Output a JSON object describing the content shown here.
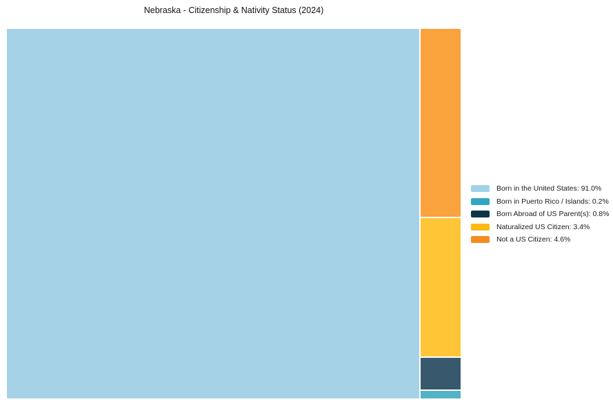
{
  "title": "Nebraska - Citizenship & Nativity Status (2024)",
  "chart_data": {
    "type": "treemap",
    "title": "Nebraska - Citizenship & Nativity Status (2024)",
    "unit": "%",
    "total": 100,
    "legend_position": "right-middle",
    "layout": "large-block-left-small-column-right-descending",
    "segments": [
      {
        "label": "Born in the United States",
        "value": 91.0,
        "display": "Born in the United States: 91.0%",
        "color": "#a6d2e8",
        "legend_color": "#a3d3e9"
      },
      {
        "label": "Born in Puerto Rico / Islands",
        "value": 0.2,
        "display": "Born in Puerto Rico / Islands: 0.2%",
        "color": "#52b2c6",
        "legend_color": "#33a7c2"
      },
      {
        "label": "Born Abroad of US Parent(s)",
        "value": 0.8,
        "display": "Born Abroad of US Parent(s): 0.8%",
        "color": "#38586d",
        "legend_color": "#0d3349"
      },
      {
        "label": "Naturalized US Citizen",
        "value": 3.4,
        "display": "Naturalized US Citizen: 3.4%",
        "color": "#fec537",
        "legend_color": "#fdb813"
      },
      {
        "label": "Not a US Citizen",
        "value": 4.6,
        "display": "Not a US Citizen: 4.6%",
        "color": "#faa23c",
        "legend_color": "#f68b1f"
      }
    ]
  }
}
